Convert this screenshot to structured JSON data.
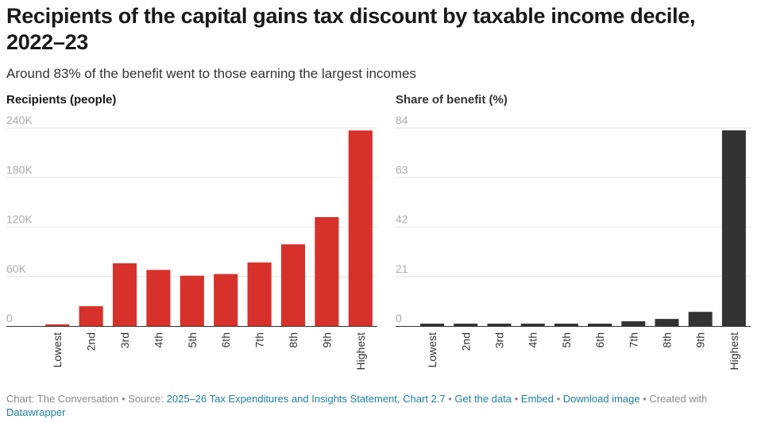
{
  "title": "Recipients of the capital gains tax discount by taxable income decile, 2022–23",
  "subtitle": "Around 83% of the benefit went to those earning the largest incomes",
  "colors": {
    "recipients": "#d6312a",
    "share": "#333333",
    "grid": "#e6e6e6",
    "tick": "#aaaaaa"
  },
  "chart_data": [
    {
      "type": "bar",
      "title": "Recipients (people)",
      "categories": [
        "Lowest",
        "2nd",
        "3rd",
        "4th",
        "5th",
        "6th",
        "7th",
        "8th",
        "9th",
        "Highest"
      ],
      "values": [
        2000,
        24000,
        76000,
        68000,
        61000,
        63000,
        77000,
        99000,
        132000,
        237000
      ],
      "ylim": [
        0,
        240000
      ],
      "yticks": [
        0,
        60000,
        120000,
        180000,
        240000
      ],
      "ytick_labels": [
        "0",
        "60K",
        "120K",
        "180K",
        "240K"
      ],
      "grid": true
    },
    {
      "type": "bar",
      "title": "Share of benefit (%)",
      "categories": [
        "Lowest",
        "2nd",
        "3rd",
        "4th",
        "5th",
        "6th",
        "7th",
        "8th",
        "9th",
        "Highest"
      ],
      "values": [
        1,
        1,
        1,
        1,
        1,
        1,
        2,
        3,
        6,
        83
      ],
      "ylim": [
        0,
        84
      ],
      "yticks": [
        0,
        21,
        42,
        63,
        84
      ],
      "ytick_labels": [
        "0",
        "21",
        "42",
        "63",
        "84"
      ],
      "grid": true
    }
  ],
  "footer": {
    "chart_credit": "Chart: The Conversation",
    "source_label": "Source:",
    "source_link": "2025–26 Tax Expenditures and Insights Statement, Chart 2.7",
    "get_data": "Get the data",
    "embed": "Embed",
    "download": "Download image",
    "created_with": "Created with",
    "datawrapper": "Datawrapper"
  }
}
